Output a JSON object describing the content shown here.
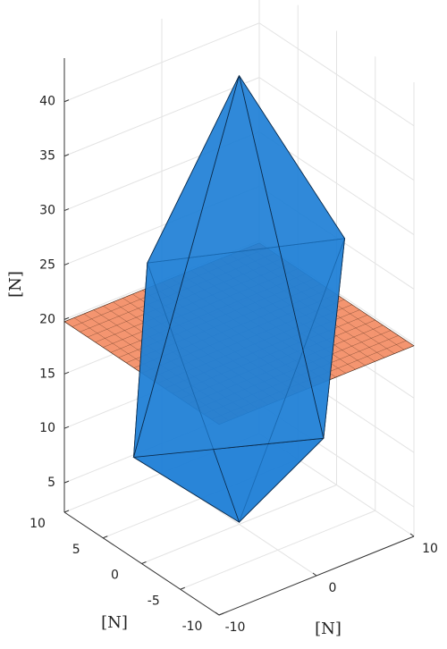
{
  "chart_data": {
    "type": "surface3d",
    "xlabel": "[N]",
    "ylabel": "[N]",
    "zlabel": "[N]",
    "xlim": [
      -10,
      10
    ],
    "ylim": [
      -10,
      10
    ],
    "zlim": [
      2.3,
      44
    ],
    "xticks": [
      -10,
      0,
      10
    ],
    "yticks": [
      -10,
      -5,
      0,
      5,
      10
    ],
    "zticks": [
      5,
      10,
      15,
      20,
      25,
      30,
      35,
      40
    ],
    "grid": true,
    "polytope": {
      "color": "#1f7fd6",
      "apex_top": [
        0,
        0,
        43.5
      ],
      "apex_bottom": [
        0,
        0,
        2.5
      ],
      "ring": [
        [
          -4.5,
          6.2,
          25
        ],
        [
          9.4,
          -1.8,
          26
        ],
        [
          3.5,
          -6.5,
          12
        ],
        [
          -9.4,
          1.8,
          11
        ]
      ]
    },
    "plane": {
      "color": "#f2865c",
      "z": 19.8
    }
  }
}
